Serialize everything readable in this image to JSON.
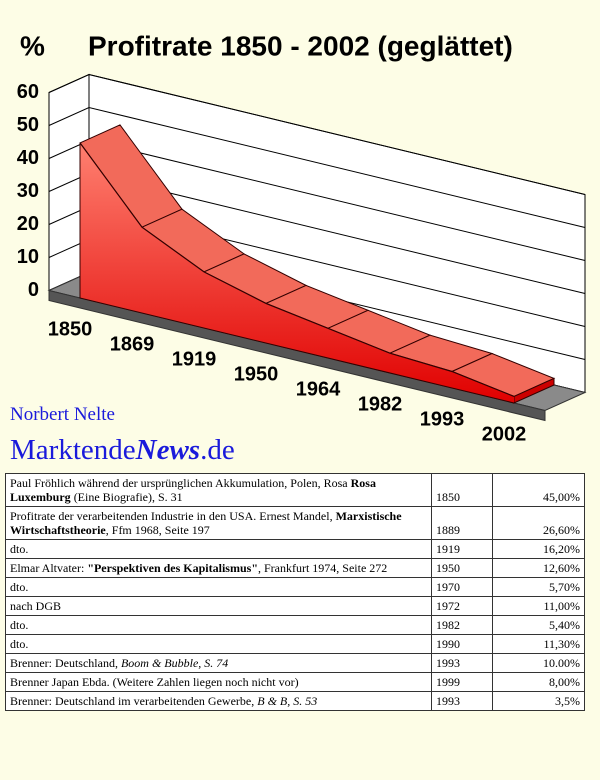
{
  "chart_data": {
    "type": "area",
    "title": "Profitrate 1850 - 2002 (geglättet)",
    "y_label": "%",
    "categories": [
      "1850",
      "1869",
      "1919",
      "1950",
      "1964",
      "1982",
      "1993",
      "2002"
    ],
    "values": [
      47,
      26,
      17,
      12,
      9,
      6,
      5,
      2
    ],
    "color": "#e8141a",
    "ylim": [
      0,
      60
    ],
    "yticks": [
      0,
      10,
      20,
      30,
      40,
      50,
      60
    ],
    "grid": true
  },
  "author": {
    "name": "Norbert Nelte",
    "site": [
      "Marktende",
      "News",
      ".de"
    ]
  },
  "table": {
    "rows": [
      {
        "source": [
          "Paul Fröhlich während der ursprünglichen Akkumulation, Polen, Rosa ",
          "Rosa Luxemburg",
          " (Eine Biografie), S. 31"
        ],
        "year": "1850",
        "rate": "45,00%"
      },
      {
        "source": [
          "Profitrate der verarbeitenden Industrie in den USA. Ernest Mandel, ",
          "Marxistische Wirtschaftstheorie",
          ", Ffm 1968, Seite 197"
        ],
        "year": "1889",
        "rate": "26,60%"
      },
      {
        "source": [
          "dto."
        ],
        "year": "1919",
        "rate": "16,20%"
      },
      {
        "source": [
          "Elmar Altvater: ",
          "\"Perspektiven des Kapitalismus\"",
          ", Frankfurt 1974, Seite 272"
        ],
        "year": "1950",
        "rate": "12,60%"
      },
      {
        "source": [
          "dto."
        ],
        "year": "1970",
        "rate": "5,70%"
      },
      {
        "source": [
          "nach DGB"
        ],
        "year": "1972",
        "rate": "11,00%"
      },
      {
        "source": [
          "dto."
        ],
        "year": "1982",
        "rate": "5,40%"
      },
      {
        "source": [
          "dto."
        ],
        "year": "1990",
        "rate": "11,30%"
      },
      {
        "source": [
          "Brenner: Deutschland, ",
          "Boom & Bubble, S. 74"
        ],
        "year": "1993",
        "rate": "10.00%"
      },
      {
        "source": [
          "Brenner Japan Ebda. (Weitere Zahlen liegen noch nicht vor)"
        ],
        "year": "1999",
        "rate": "8,00%"
      },
      {
        "source": [
          "Brenner: Deutschland im verarbeitenden Gewerbe, ",
          "B & B, S. 53"
        ],
        "year": "1993",
        "rate": "3,5%"
      }
    ]
  }
}
